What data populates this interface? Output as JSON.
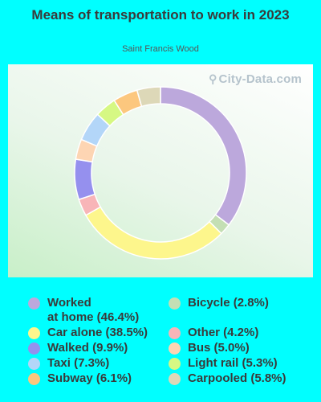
{
  "chart_data": {
    "type": "pie",
    "variant": "donut",
    "title": "Means of transportation to work in 2023",
    "subtitle": "Saint Francis Wood",
    "watermark": "City-Data.com",
    "slices": [
      {
        "label": "Worked at home",
        "value": 46.4,
        "legend": "Worked\nat home (46.4%)",
        "color": "#bca8dc"
      },
      {
        "label": "Bicycle",
        "value": 2.8,
        "legend": "Bicycle (2.8%)",
        "color": "#c4dfb4"
      },
      {
        "label": "Car alone",
        "value": 38.5,
        "legend": "Car alone (38.5%)",
        "color": "#fdf68c"
      },
      {
        "label": "Other",
        "value": 4.2,
        "legend": "Other (4.2%)",
        "color": "#f8b5b8"
      },
      {
        "label": "Walked",
        "value": 9.9,
        "legend": "Walked (9.9%)",
        "color": "#9590ee"
      },
      {
        "label": "Bus",
        "value": 5.0,
        "legend": "Bus (5.0%)",
        "color": "#fdd5b3"
      },
      {
        "label": "Taxi",
        "value": 7.3,
        "legend": "Taxi (7.3%)",
        "color": "#b3d6f8"
      },
      {
        "label": "Light rail",
        "value": 5.3,
        "legend": "Light rail (5.3%)",
        "color": "#d6f883"
      },
      {
        "label": "Subway",
        "value": 6.1,
        "legend": "Subway (6.1%)",
        "color": "#fcc77e"
      },
      {
        "label": "Carpooled",
        "value": 5.8,
        "legend": "Carpooled (5.8%)",
        "color": "#ddd8b8"
      }
    ]
  }
}
